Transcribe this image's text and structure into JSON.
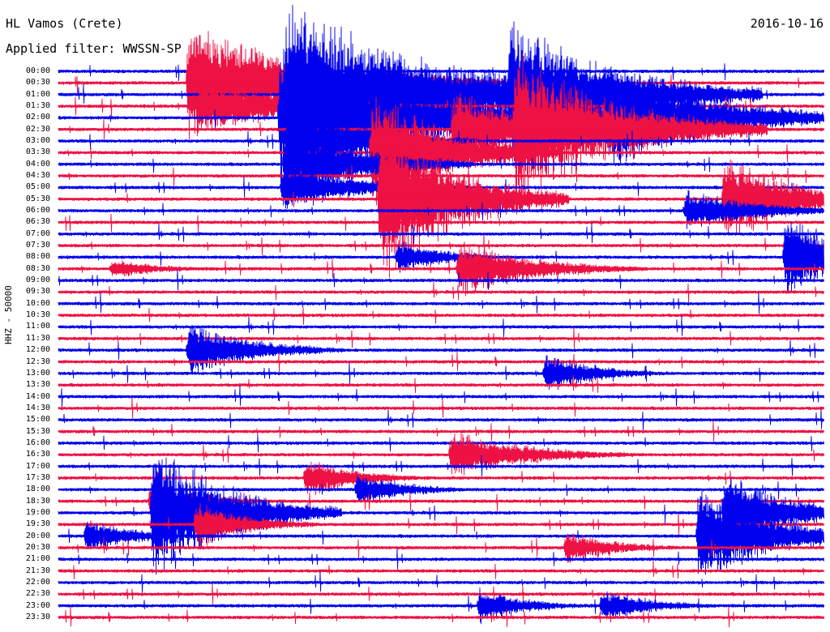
{
  "header": {
    "station": "HL Vamos (Crete)",
    "filter": "Applied filter: WWSSN-SP",
    "date": "2016-10-16"
  },
  "y_axis_label": "HHZ - 50000",
  "chart_data": {
    "type": "line",
    "x_start": "00:00",
    "trace_minutes": 30,
    "trace_labels": [
      "00:00",
      "00:30",
      "01:00",
      "01:30",
      "02:00",
      "02:30",
      "03:00",
      "03:30",
      "04:00",
      "04:30",
      "05:00",
      "05:30",
      "06:00",
      "06:30",
      "07:00",
      "07:30",
      "08:00",
      "08:30",
      "09:00",
      "09:30",
      "10:00",
      "10:30",
      "11:00",
      "11:30",
      "12:00",
      "12:30",
      "13:00",
      "13:30",
      "14:00",
      "14:30",
      "15:00",
      "15:30",
      "16:00",
      "16:30",
      "17:00",
      "17:30",
      "18:00",
      "18:30",
      "19:00",
      "19:30",
      "20:00",
      "20:30",
      "21:00",
      "21:30",
      "22:00",
      "22:30",
      "23:00",
      "23:30"
    ],
    "trace_colors": [
      "#0000ee",
      "#ee1144"
    ],
    "events": [
      {
        "trace": 1,
        "minute": 5.0,
        "amp": 80,
        "dur": 5
      },
      {
        "trace": 2,
        "minute": 8.8,
        "amp": 130,
        "dur": 6
      },
      {
        "trace": 2,
        "minute": 17.6,
        "amp": 110,
        "dur": 4
      },
      {
        "trace": 3,
        "minute": 5.4,
        "amp": 40,
        "dur": 4
      },
      {
        "trace": 3,
        "minute": 7.2,
        "amp": 25,
        "dur": 3
      },
      {
        "trace": 4,
        "minute": 8.6,
        "amp": 110,
        "dur": 5
      },
      {
        "trace": 4,
        "minute": 18.1,
        "amp": 70,
        "dur": 3
      },
      {
        "trace": 4,
        "minute": 21.4,
        "amp": 80,
        "dur": 4
      },
      {
        "trace": 5,
        "minute": 15.4,
        "amp": 60,
        "dur": 3
      },
      {
        "trace": 5,
        "minute": 17.8,
        "amp": 110,
        "dur": 4
      },
      {
        "trace": 6,
        "minute": 8.9,
        "amp": 60,
        "dur": 3
      },
      {
        "trace": 7,
        "minute": 12.2,
        "amp": 90,
        "dur": 3
      },
      {
        "trace": 8,
        "minute": 8.8,
        "amp": 60,
        "dur": 3
      },
      {
        "trace": 10,
        "minute": 8.7,
        "amp": 35,
        "dur": 3
      },
      {
        "trace": 11,
        "minute": 12.5,
        "amp": 120,
        "dur": 3
      },
      {
        "trace": 11,
        "minute": 26.0,
        "amp": 60,
        "dur": 3
      },
      {
        "trace": 12,
        "minute": 24.5,
        "amp": 30,
        "dur": 3
      },
      {
        "trace": 16,
        "minute": 13.2,
        "amp": 25,
        "dur": 2
      },
      {
        "trace": 16,
        "minute": 28.4,
        "amp": 60,
        "dur": 3
      },
      {
        "trace": 17,
        "minute": 15.6,
        "amp": 40,
        "dur": 3
      },
      {
        "trace": 17,
        "minute": 2.0,
        "amp": 15,
        "dur": 2
      },
      {
        "trace": 24,
        "minute": 5.0,
        "amp": 40,
        "dur": 2.5
      },
      {
        "trace": 26,
        "minute": 19.0,
        "amp": 30,
        "dur": 2
      },
      {
        "trace": 33,
        "minute": 15.3,
        "amp": 35,
        "dur": 3
      },
      {
        "trace": 35,
        "minute": 9.6,
        "amp": 30,
        "dur": 2
      },
      {
        "trace": 36,
        "minute": 11.6,
        "amp": 25,
        "dur": 2
      },
      {
        "trace": 37,
        "minute": 3.5,
        "amp": 30,
        "dur": 2
      },
      {
        "trace": 38,
        "minute": 3.6,
        "amp": 100,
        "dur": 3
      },
      {
        "trace": 38,
        "minute": 26.0,
        "amp": 60,
        "dur": 2.5
      },
      {
        "trace": 39,
        "minute": 5.3,
        "amp": 35,
        "dur": 2
      },
      {
        "trace": 40,
        "minute": 1.0,
        "amp": 25,
        "dur": 2
      },
      {
        "trace": 40,
        "minute": 25.0,
        "amp": 70,
        "dur": 3
      },
      {
        "trace": 41,
        "minute": 19.8,
        "amp": 25,
        "dur": 2
      },
      {
        "trace": 46,
        "minute": 16.4,
        "amp": 25,
        "dur": 2
      },
      {
        "trace": 46,
        "minute": 21.2,
        "amp": 25,
        "dur": 2
      }
    ]
  }
}
